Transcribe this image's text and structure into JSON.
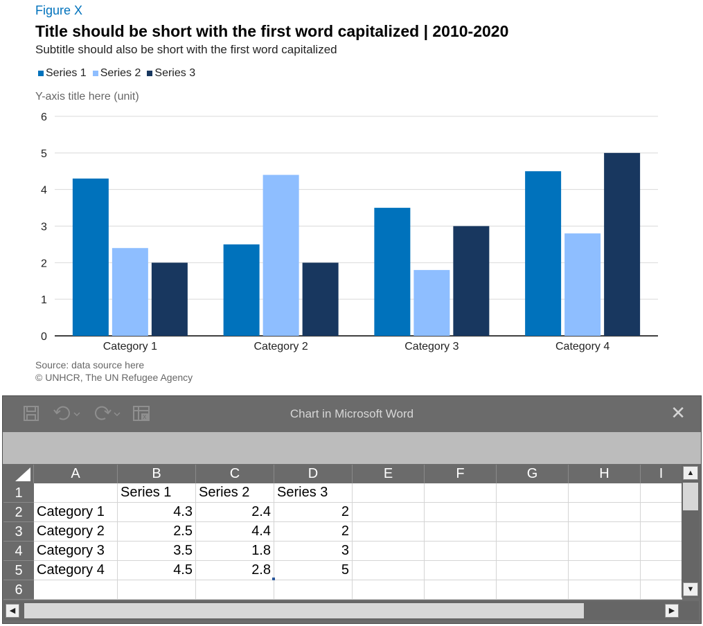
{
  "figure_label": "Figure X",
  "title": "Title should be short with the first word capitalized | 2010-2020",
  "subtitle": "Subtitle should also be short with the first word capitalized",
  "source": "Source: data source here",
  "copyright": "© UNHCR, The UN Refugee Agency",
  "colors": {
    "series1": "#0072bc",
    "series2": "#8ebeff",
    "series3": "#18375f",
    "accent": "#0072bc"
  },
  "chart_data": {
    "type": "bar",
    "categories": [
      "Category 1",
      "Category 2",
      "Category 3",
      "Category 4"
    ],
    "series": [
      {
        "name": "Series 1",
        "values": [
          4.3,
          2.5,
          3.5,
          4.5
        ]
      },
      {
        "name": "Series 2",
        "values": [
          2.4,
          4.4,
          1.8,
          2.8
        ]
      },
      {
        "name": "Series 3",
        "values": [
          2,
          2,
          3,
          5
        ]
      }
    ],
    "ylabel": "Y-axis title here (unit)",
    "ylim": [
      0,
      6
    ],
    "yticks": [
      "0",
      "1",
      "2",
      "3",
      "4",
      "5",
      "6"
    ],
    "grid": true,
    "legend": "top-left"
  },
  "excel": {
    "window_title": "Chart in Microsoft Word",
    "toolbar_icons": [
      "save-icon",
      "undo-icon",
      "redo-icon",
      "edit-data-icon"
    ],
    "columns": [
      "A",
      "B",
      "C",
      "D",
      "E",
      "F",
      "G",
      "H",
      "I"
    ],
    "rows": [
      "1",
      "2",
      "3",
      "4",
      "5",
      "6"
    ],
    "cells": [
      [
        "",
        "Series 1",
        "Series 2",
        "Series 3"
      ],
      [
        "Category 1",
        "4.3",
        "2.4",
        "2"
      ],
      [
        "Category 2",
        "2.5",
        "4.4",
        "2"
      ],
      [
        "Category 3",
        "3.5",
        "1.8",
        "3"
      ],
      [
        "Category 4",
        "4.5",
        "2.8",
        "5"
      ],
      [
        "",
        "",
        "",
        ""
      ]
    ]
  }
}
